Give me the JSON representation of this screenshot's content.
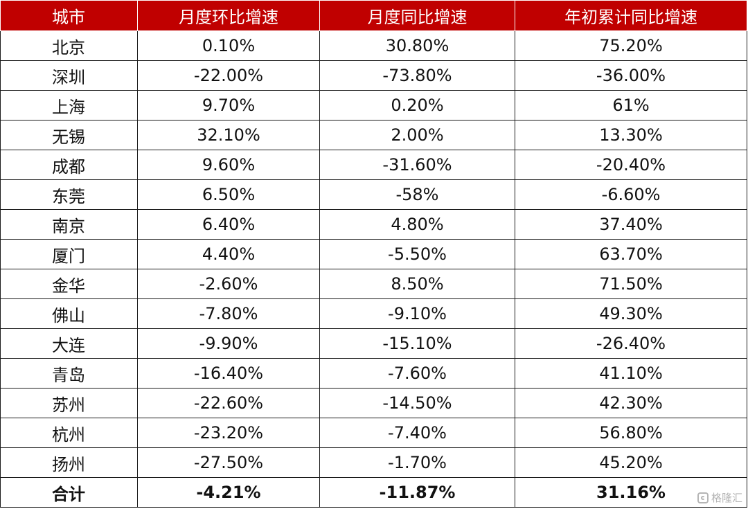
{
  "table": {
    "headers": [
      "城市",
      "月度环比增速",
      "月度同比增速",
      "年初累计同比增速"
    ],
    "rows": [
      [
        "北京",
        "0.10%",
        "30.80%",
        "75.20%"
      ],
      [
        "深圳",
        "-22.00%",
        "-73.80%",
        "-36.00%"
      ],
      [
        "上海",
        "9.70%",
        "0.20%",
        "61%"
      ],
      [
        "无锡",
        "32.10%",
        "2.00%",
        "13.30%"
      ],
      [
        "成都",
        "9.60%",
        "-31.60%",
        "-20.40%"
      ],
      [
        "东莞",
        "6.50%",
        "-58%",
        "-6.60%"
      ],
      [
        "南京",
        "6.40%",
        "4.80%",
        "37.40%"
      ],
      [
        "厦门",
        "4.40%",
        "-5.50%",
        "63.70%"
      ],
      [
        "金华",
        "-2.60%",
        "8.50%",
        "71.50%"
      ],
      [
        "佛山",
        "-7.80%",
        "-9.10%",
        "49.30%"
      ],
      [
        "大连",
        "-9.90%",
        "-15.10%",
        "-26.40%"
      ],
      [
        "青岛",
        "-16.40%",
        "-7.60%",
        "41.10%"
      ],
      [
        "苏州",
        "-22.60%",
        "-14.50%",
        "42.30%"
      ],
      [
        "杭州",
        "-23.20%",
        "-7.40%",
        "56.80%"
      ],
      [
        "扬州",
        "-27.50%",
        "-1.70%",
        "45.20%"
      ]
    ],
    "total": [
      "合计",
      "-4.21%",
      "-11.87%",
      "31.16%"
    ]
  },
  "watermark": {
    "text": "格隆汇",
    "icon": "brand-logo-icon"
  },
  "colors": {
    "header_bg": "#c00000",
    "header_text": "#ffffff",
    "border": "#1a1a1a"
  }
}
